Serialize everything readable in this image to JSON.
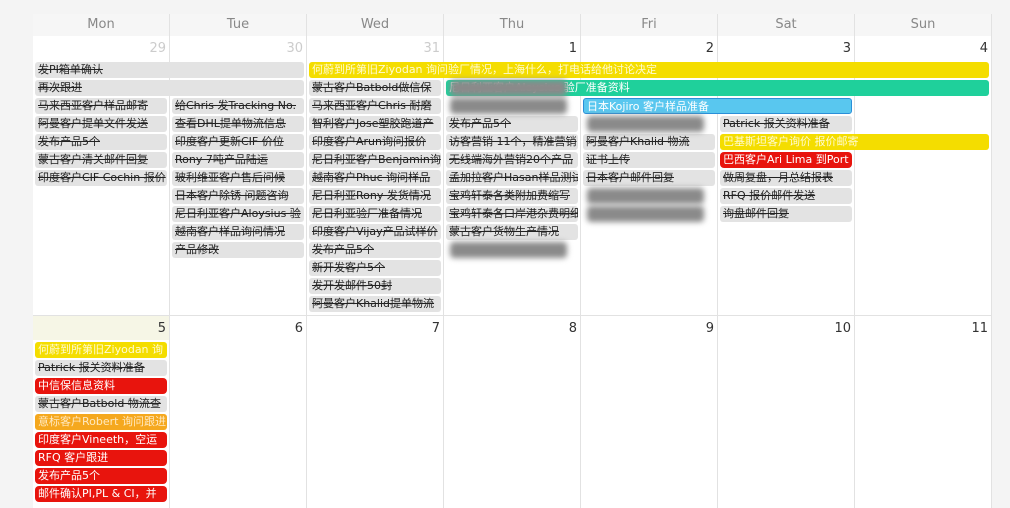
{
  "weekdays": [
    "Mon",
    "Tue",
    "Wed",
    "Thu",
    "Fri",
    "Sat",
    "Sun"
  ],
  "weeks": [
    {
      "days": [
        {
          "date": 29,
          "events": [
            "发PI箱单确认",
            "再次跟进",
            "马来西亚客户样品邮寄",
            "阿曼客户提单文件发送",
            "发布产品5个",
            "蒙古客户清关邮件回复",
            "印度客户CIF Cochin 报价"
          ]
        },
        {
          "date": 30,
          "events": [
            "给Chris 发Tracking No.",
            "查看DHL提单物流信息",
            "印度客户更新CIF 价位",
            "Rony 7吨产品陆运",
            "玻利维亚客户售后问候",
            "日本客户除锈 问题咨询",
            "尼日利亚客户Aloysius 验",
            "越南客户样品询问情况",
            "产品修改"
          ]
        },
        {
          "date": 31,
          "events": [
            "何蔚到所第旧Ziyodan 询问验厂情况，上海什么，打电话给他讨论决定",
            "蒙古客户Batbold做信保",
            "马来西亚客户Chris 耐磨",
            "智利客户Jose塑胶跑道产",
            "印度客户Arun询问报价",
            "尼日利亚客户Benjamin询",
            "越南客户Phuc 询问样品",
            "尼日利亚Rony 发货情况",
            "尼日利亚验厂准备情况",
            "印度客户Vijay产品试样价",
            "发布产品5个",
            "新开发客户5个",
            "发开发邮件50封",
            "阿曼客户Khalid提单物流"
          ]
        },
        {
          "date": 1,
          "events": [
            "尼日利亚客户Aloysius 验厂准备资料",
            "发布产品5个",
            "访客营销 11个，精准营销",
            "无线端海外营销20个产品",
            "孟加拉客户Hasan样品测试",
            "宝鸡轩泰各类附加费缩写",
            "宝鸡轩泰各口岸港杂费明细",
            "蒙古客户货物生产情况"
          ]
        },
        {
          "date": 2,
          "events": [
            "日本Kojiro 客户样品准备",
            "阿曼客户Khalid 物流",
            "证书上传",
            "日本客户邮件回复"
          ]
        },
        {
          "date": 3,
          "events": [
            "Patrick 报关资料准备",
            "巴基斯坦客户询价 报价邮寄",
            "巴西客户Ari Lima 到Port",
            "做周复盘，月总结报表",
            "RFQ 报价邮件发送",
            "询盘邮件回复"
          ]
        },
        {
          "date": 4,
          "events": []
        }
      ]
    },
    {
      "days": [
        {
          "date": 5,
          "events": [
            "何蔚到所第旧Ziyodan 询",
            "Patrick 报关资料准备",
            "中信保信息资料",
            "蒙古客户Batbold 物流查",
            "意标客户Robert 询问跟进",
            "印度客户Vineeth，空运",
            "RFQ 客户跟进",
            "发布产品5个",
            "邮件确认PI,PL & CI，并"
          ]
        },
        {
          "date": 6,
          "events": []
        },
        {
          "date": 7,
          "events": []
        },
        {
          "date": 8,
          "events": []
        },
        {
          "date": 9,
          "events": []
        },
        {
          "date": 10,
          "events": []
        },
        {
          "date": 11,
          "events": []
        }
      ]
    }
  ]
}
